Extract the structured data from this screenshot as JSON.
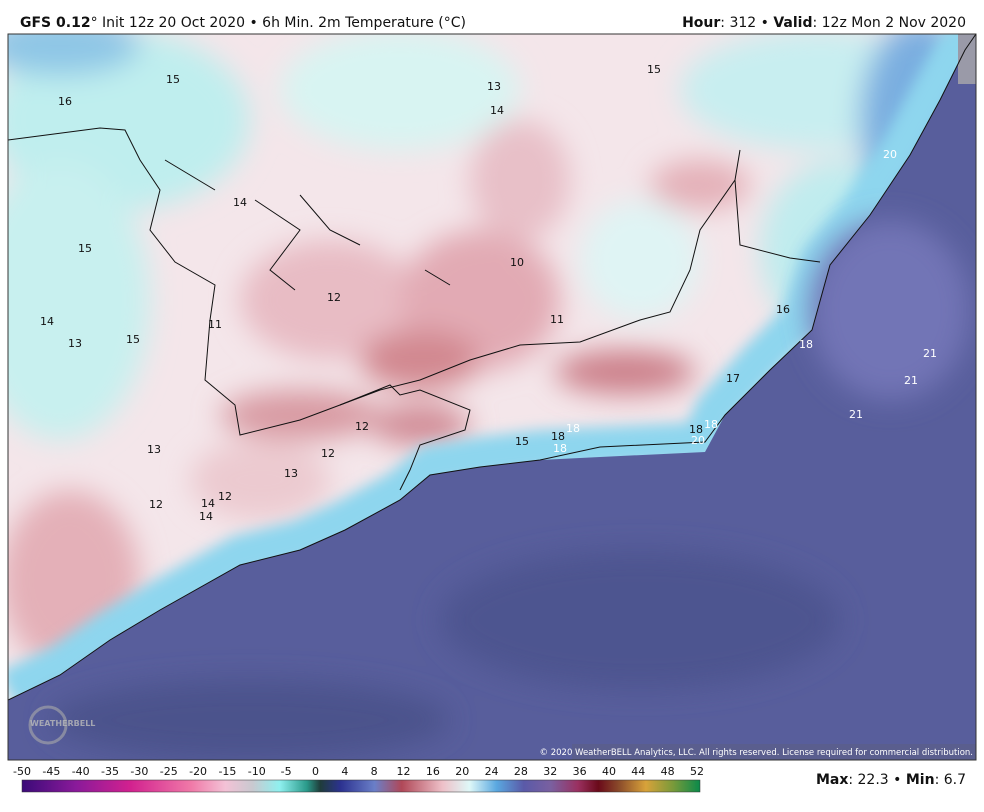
{
  "header": {
    "model": "GFS 0.12",
    "description": "° Init 12z 20 Oct 2020 • 6h Min. 2m Temperature (°C)",
    "hour_label": "Hour",
    "hour": ": 312 • ",
    "valid_label": "Valid",
    "valid": ": 12z Mon 2 Nov 2020"
  },
  "labels": [
    15,
    16,
    13,
    14,
    15,
    20,
    14,
    15,
    10,
    12,
    14,
    13,
    15,
    11,
    11,
    16,
    18,
    21,
    21,
    17,
    21,
    12,
    13,
    12,
    15,
    18,
    18,
    18,
    18,
    18,
    20,
    13,
    12,
    12,
    14,
    14
  ],
  "watermark": "WEATHERBELL",
  "copyright": "© 2020 WeatherBELL Analytics, LLC. All rights reserved. License required for commercial distribution.",
  "colorbar_ticks": [
    -50,
    -45,
    -40,
    -35,
    -30,
    -25,
    -20,
    -15,
    -10,
    -5,
    0,
    4,
    8,
    12,
    16,
    20,
    24,
    28,
    32,
    36,
    40,
    44,
    48,
    52
  ],
  "footer": {
    "max_label": "Max",
    "max": ": 22.3 • ",
    "min_label": "Min",
    "min": ": 6.7"
  }
}
